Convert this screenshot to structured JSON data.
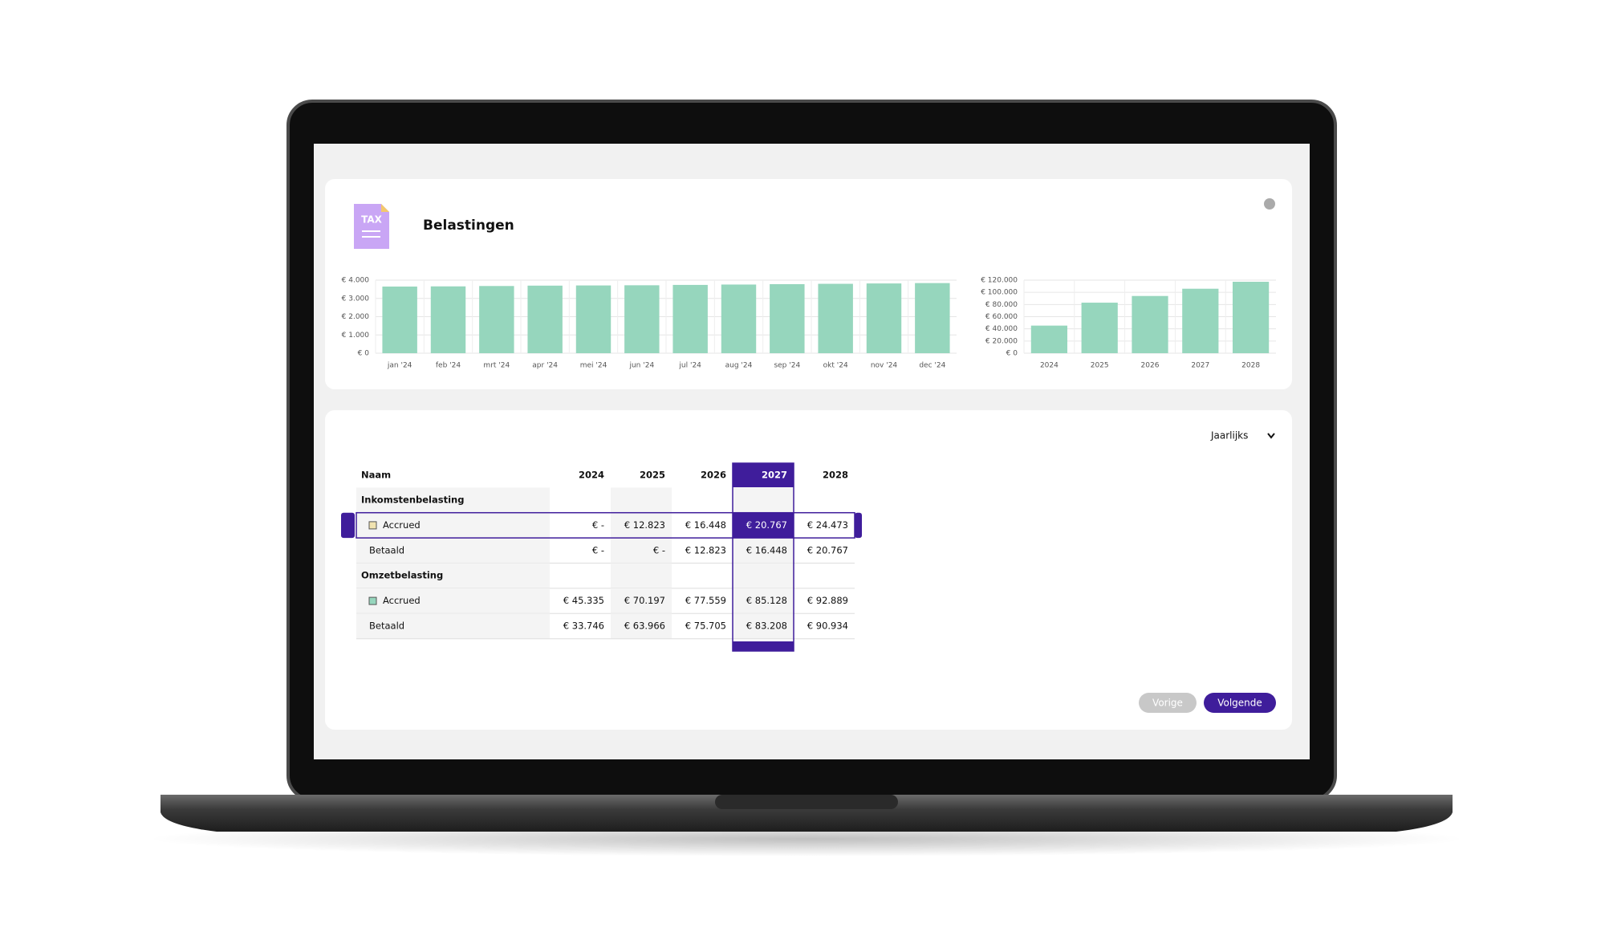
{
  "header": {
    "icon_label": "TAX",
    "title": "Belastingen"
  },
  "chart_data": [
    {
      "type": "bar",
      "categories": [
        "jan '24",
        "feb '24",
        "mrt '24",
        "apr '24",
        "mei '24",
        "jun '24",
        "jul '24",
        "aug '24",
        "sep '24",
        "okt '24",
        "nov '24",
        "dec '24"
      ],
      "values": [
        3650,
        3660,
        3680,
        3700,
        3710,
        3720,
        3740,
        3760,
        3780,
        3800,
        3820,
        3840
      ],
      "color": "#96d6bd",
      "ylim": [
        0,
        4000
      ],
      "yticks": [
        {
          "value": 0,
          "label": "€ 0"
        },
        {
          "value": 1000,
          "label": "€ 1.000"
        },
        {
          "value": 2000,
          "label": "€ 2.000"
        },
        {
          "value": 3000,
          "label": "€ 3.000"
        },
        {
          "value": 4000,
          "label": "€ 4.000"
        }
      ],
      "grid": true
    },
    {
      "type": "bar",
      "categories": [
        "2024",
        "2025",
        "2026",
        "2027",
        "2028"
      ],
      "values": [
        45335,
        83020,
        94007,
        105895,
        117362
      ],
      "color": "#96d6bd",
      "ylim": [
        0,
        120000
      ],
      "yticks": [
        {
          "value": 0,
          "label": "€ 0"
        },
        {
          "value": 20000,
          "label": "€ 20.000"
        },
        {
          "value": 40000,
          "label": "€ 40.000"
        },
        {
          "value": 60000,
          "label": "€ 60.000"
        },
        {
          "value": 80000,
          "label": "€ 80.000"
        },
        {
          "value": 100000,
          "label": "€ 100.000"
        },
        {
          "value": 120000,
          "label": "€ 120.000"
        }
      ],
      "grid": true
    }
  ],
  "table": {
    "period": "Jaarlijks",
    "columns": [
      "Naam",
      "2024",
      "2025",
      "2026",
      "2027",
      "2028"
    ],
    "highlight_column": 4,
    "highlight_row": 1,
    "rows": [
      {
        "group": "Inkomstenbelasting"
      },
      {
        "name": "Accrued",
        "marker": "#f1e3b0",
        "cells": [
          "€ -",
          "€ 12.823",
          "€ 16.448",
          "€ 20.767",
          "€ 24.473"
        ]
      },
      {
        "name": "Betaald",
        "cells": [
          "€ -",
          "€ -",
          "€ 12.823",
          "€ 16.448",
          "€ 20.767"
        ]
      },
      {
        "group": "Omzetbelasting"
      },
      {
        "name": "Accrued",
        "marker": "#96d6bd",
        "cells": [
          "€ 45.335",
          "€ 70.197",
          "€ 77.559",
          "€ 85.128",
          "€ 92.889"
        ]
      },
      {
        "name": "Betaald",
        "cells": [
          "€ 33.746",
          "€ 63.966",
          "€ 75.705",
          "€ 83.208",
          "€ 90.934"
        ]
      }
    ]
  },
  "buttons": {
    "previous": "Vorige",
    "next": "Volgende"
  }
}
